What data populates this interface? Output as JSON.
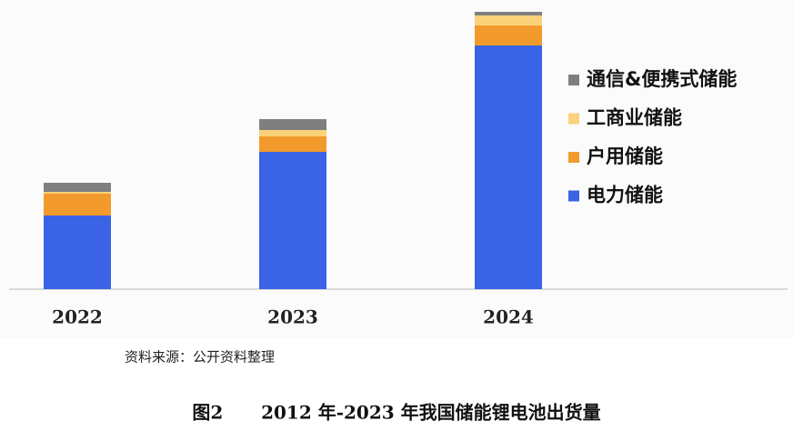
{
  "chart_data": {
    "type": "stacked_bar",
    "categories": [
      "2022",
      "2023",
      "2024"
    ],
    "series": [
      {
        "name": "电力储能",
        "color": "#3b63e6",
        "values": [
          81,
          151,
          268
        ]
      },
      {
        "name": "户用储能",
        "color": "#f29b2c",
        "values": [
          24,
          17,
          22
        ]
      },
      {
        "name": "工商业储能",
        "color": "#fbd27a",
        "values": [
          2,
          7,
          11
        ]
      },
      {
        "name": "通信&便携式储能",
        "color": "#7f7f7f",
        "values": [
          10,
          12,
          4
        ]
      }
    ],
    "source": "资料来源：公开资料整理",
    "caption": "图2      2012 年-2023 年我国储能锂电池出货量"
  }
}
